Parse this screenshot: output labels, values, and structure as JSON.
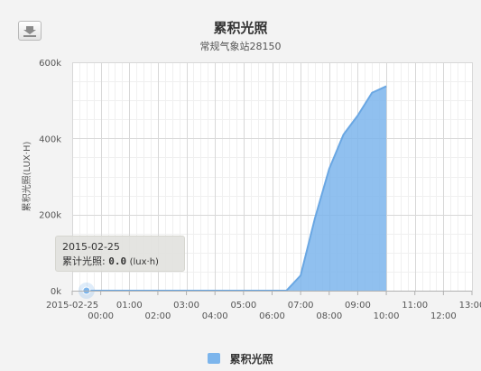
{
  "toolbar": {
    "export_icon": "download-icon"
  },
  "chart_data": {
    "type": "area",
    "title": "累积光照",
    "subtitle": "常规气象站28150",
    "ylabel": "累积光照(LUX·H)",
    "ylim": [
      0,
      600000
    ],
    "yticks": [
      {
        "v": 0,
        "label": "0k"
      },
      {
        "v": 200000,
        "label": "200k"
      },
      {
        "v": 400000,
        "label": "400k"
      },
      {
        "v": 600000,
        "label": "600k"
      }
    ],
    "xlim": [
      -0.5,
      13.5
    ],
    "xticks": [
      {
        "v": -0.5,
        "label": "2015-02-25"
      },
      {
        "v": 0.5,
        "label": "00:00"
      },
      {
        "v": 1.5,
        "label": "01:00"
      },
      {
        "v": 2.5,
        "label": "02:00"
      },
      {
        "v": 3.5,
        "label": "03:00"
      },
      {
        "v": 4.5,
        "label": "04:00"
      },
      {
        "v": 5.5,
        "label": "05:00"
      },
      {
        "v": 6.5,
        "label": "06:00"
      },
      {
        "v": 7.5,
        "label": "07:00"
      },
      {
        "v": 8.5,
        "label": "08:00"
      },
      {
        "v": 9.5,
        "label": "09:00"
      },
      {
        "v": 10.5,
        "label": "10:00"
      },
      {
        "v": 11.5,
        "label": "11:00"
      },
      {
        "v": 12.5,
        "label": "12:00"
      },
      {
        "v": 13.5,
        "label": "13:00"
      }
    ],
    "series": [
      {
        "name": "累积光照",
        "color": "#7cb5ec",
        "points": [
          [
            0,
            0
          ],
          [
            0.5,
            0
          ],
          [
            1,
            0
          ],
          [
            1.5,
            0
          ],
          [
            2,
            0
          ],
          [
            2.5,
            0
          ],
          [
            3,
            0
          ],
          [
            3.5,
            0
          ],
          [
            4,
            0
          ],
          [
            4.5,
            0
          ],
          [
            5,
            0
          ],
          [
            5.5,
            0
          ],
          [
            6,
            0
          ],
          [
            6.5,
            0
          ],
          [
            7,
            0
          ],
          [
            7.5,
            40000
          ],
          [
            8,
            190000
          ],
          [
            8.5,
            320000
          ],
          [
            9,
            410000
          ],
          [
            9.5,
            460000
          ],
          [
            10,
            520000
          ],
          [
            10.5,
            537000
          ]
        ]
      }
    ],
    "grid": true,
    "legend": "bottom-center"
  },
  "tooltip": {
    "date": "2015-02-25",
    "label": "累计光照:",
    "value": "0.0",
    "unit": "(lux·h)"
  }
}
